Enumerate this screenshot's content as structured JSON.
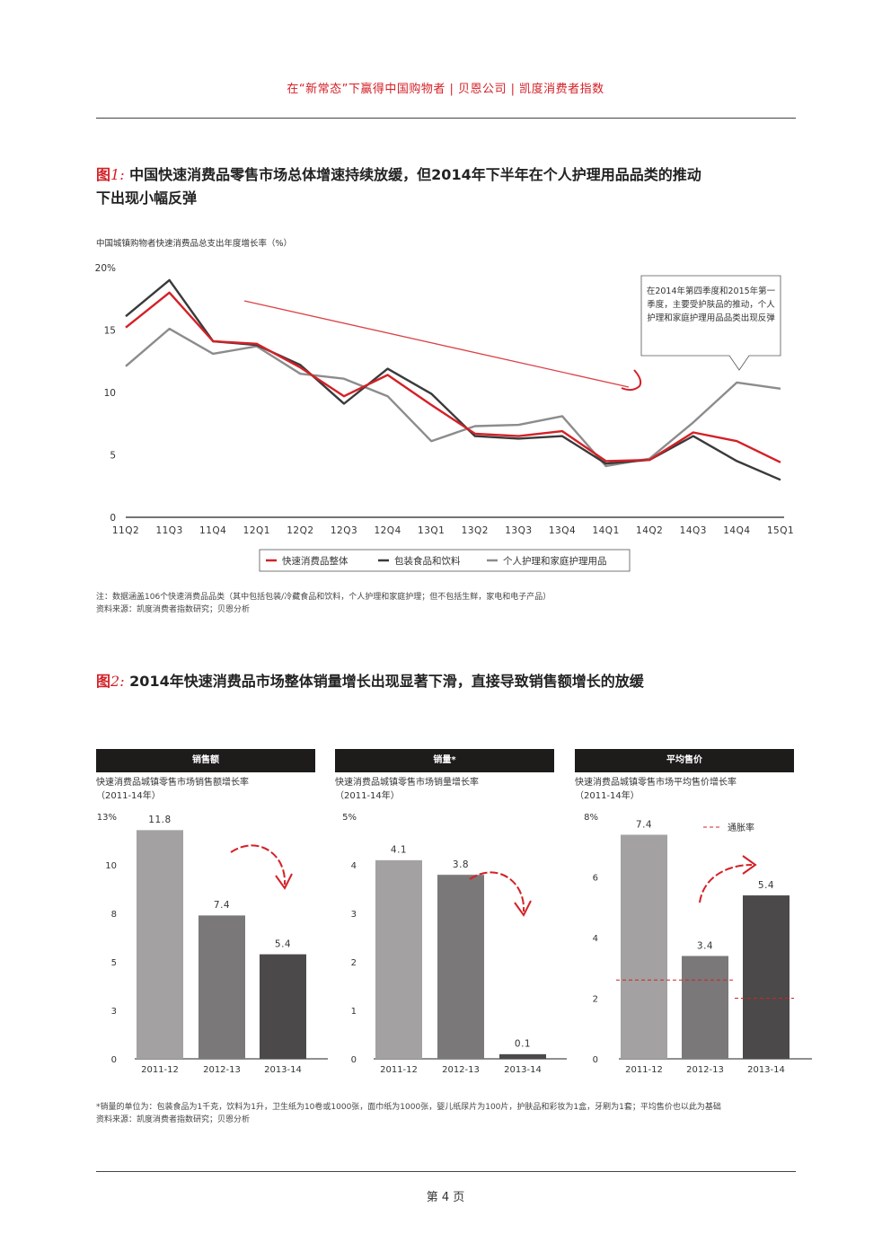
{
  "header": {
    "text": "在“新常态”下赢得中国购物者  |  贝恩公司  |  凯度消费者指数"
  },
  "figure1": {
    "label": "图",
    "num": "1:",
    "title_line1": "中国快速消费品零售市场总体增速持续放缓，但2014年下半年在个人护理用品品类的推动",
    "title_line2": "下出现小幅反弹",
    "subtitle": "中国城镇购物者快速消费品总支出年度增长率（%）",
    "callout": "在2014年第四季度和2015年第一季度，主要受护肤品的推动，个人护理和家庭护理用品品类出现反弹",
    "note": "注：数据涵盖106个快速消费品品类（其中包括包装/冷藏食品和饮料，个人护理和家庭护理；但不包括生鲜，家电和电子产品）",
    "source": "资料来源：凯度消费者指数研究；贝恩分析"
  },
  "figure2": {
    "label": "图",
    "num": "2:",
    "title": "2014年快速消费品市场整体销量增长出现显著下滑，直接导致销售额增长的放缓",
    "footnote": "*销量的单位为：包装食品为1千克，饮料为1升，卫生纸为10卷或1000张，面巾纸为1000张，婴儿纸尿片为100片，护肤品和彩妆为1盒，牙刷为1套；平均售价也以此为基础",
    "source": "资料来源：凯度消费者指数研究；贝恩分析"
  },
  "colors": {
    "accent": "#d42027",
    "dark_series": "#3a3a3a",
    "gray_series": "#8c8c8c",
    "bar_light": "#a3a1a2",
    "bar_mid": "#7a7879",
    "bar_dark": "#4b494a"
  },
  "chart_data": [
    {
      "type": "line",
      "title": "中国城镇购物者快速消费品总支出年度增长率（%）",
      "categories": [
        "11Q2",
        "11Q3",
        "11Q4",
        "12Q1",
        "12Q2",
        "12Q3",
        "12Q4",
        "13Q1",
        "13Q2",
        "13Q3",
        "13Q4",
        "14Q1",
        "14Q2",
        "14Q3",
        "14Q4",
        "15Q1"
      ],
      "y_ticks": [
        "0",
        "5",
        "10",
        "15",
        "20%"
      ],
      "ylim": [
        0,
        20
      ],
      "series": [
        {
          "name": "快速消费品整体",
          "color": "#d42027",
          "values": [
            15.2,
            18.0,
            14.1,
            13.9,
            12.0,
            9.7,
            11.4,
            9.0,
            6.7,
            6.5,
            6.9,
            4.5,
            4.6,
            6.8,
            6.1,
            4.4
          ]
        },
        {
          "name": "包装食品和饮料",
          "color": "#3a3a3a",
          "values": [
            16.1,
            19.0,
            14.1,
            13.8,
            12.2,
            9.1,
            11.9,
            9.9,
            6.5,
            6.3,
            6.5,
            4.3,
            4.6,
            6.5,
            4.5,
            3.0
          ]
        },
        {
          "name": "个人护理和家庭护理用品",
          "color": "#8c8c8c",
          "values": [
            12.1,
            15.1,
            13.1,
            13.7,
            11.5,
            11.1,
            9.7,
            6.1,
            7.3,
            7.4,
            8.1,
            4.1,
            4.7,
            7.6,
            10.8,
            10.3
          ]
        }
      ]
    },
    {
      "type": "bar",
      "panel_title": "销售额",
      "subtitle_line1": "快速消费品城镇零售市场销售额增长率",
      "subtitle_line2": "（2011-14年）",
      "categories": [
        "2011-12",
        "2012-13",
        "2013-14"
      ],
      "values": [
        11.8,
        7.4,
        5.4
      ],
      "value_labels": [
        "11.8",
        "7.4",
        "5.4"
      ],
      "y_ticks": [
        "0",
        "3",
        "5",
        "8",
        "10",
        "13%"
      ],
      "tick_values": [
        0,
        2.5,
        5,
        7.5,
        10,
        12.5
      ],
      "ylim": [
        0,
        12.5
      ],
      "arrow": "down"
    },
    {
      "type": "bar",
      "panel_title": "销量*",
      "subtitle_line1": "快速消费品城镇零售市场销量增长率",
      "subtitle_line2": "（2011-14年）",
      "categories": [
        "2011-12",
        "2012-13",
        "2013-14"
      ],
      "values": [
        4.1,
        3.8,
        0.1
      ],
      "value_labels": [
        "4.1",
        "3.8",
        "0.1"
      ],
      "y_ticks": [
        "0",
        "1",
        "2",
        "3",
        "4",
        "5%"
      ],
      "tick_values": [
        0,
        1,
        2,
        3,
        4,
        5
      ],
      "ylim": [
        0,
        5
      ],
      "arrow": "down"
    },
    {
      "type": "bar",
      "panel_title": "平均售价",
      "subtitle_line1": "快速消费品城镇零售市场平均售价增长率",
      "subtitle_line2": "（2011-14年）",
      "categories": [
        "2011-12",
        "2012-13",
        "2013-14"
      ],
      "values": [
        7.4,
        3.4,
        5.4
      ],
      "value_labels": [
        "7.4",
        "3.4",
        "5.4"
      ],
      "y_ticks": [
        "0",
        "2",
        "4",
        "6",
        "8%"
      ],
      "tick_values": [
        0,
        2,
        4,
        6,
        8
      ],
      "ylim": [
        0,
        8
      ],
      "inflation_label": "通胀率",
      "inflation": [
        2.6,
        2.0
      ],
      "arrow": "up"
    }
  ],
  "footer": {
    "page": "第 4 页"
  }
}
